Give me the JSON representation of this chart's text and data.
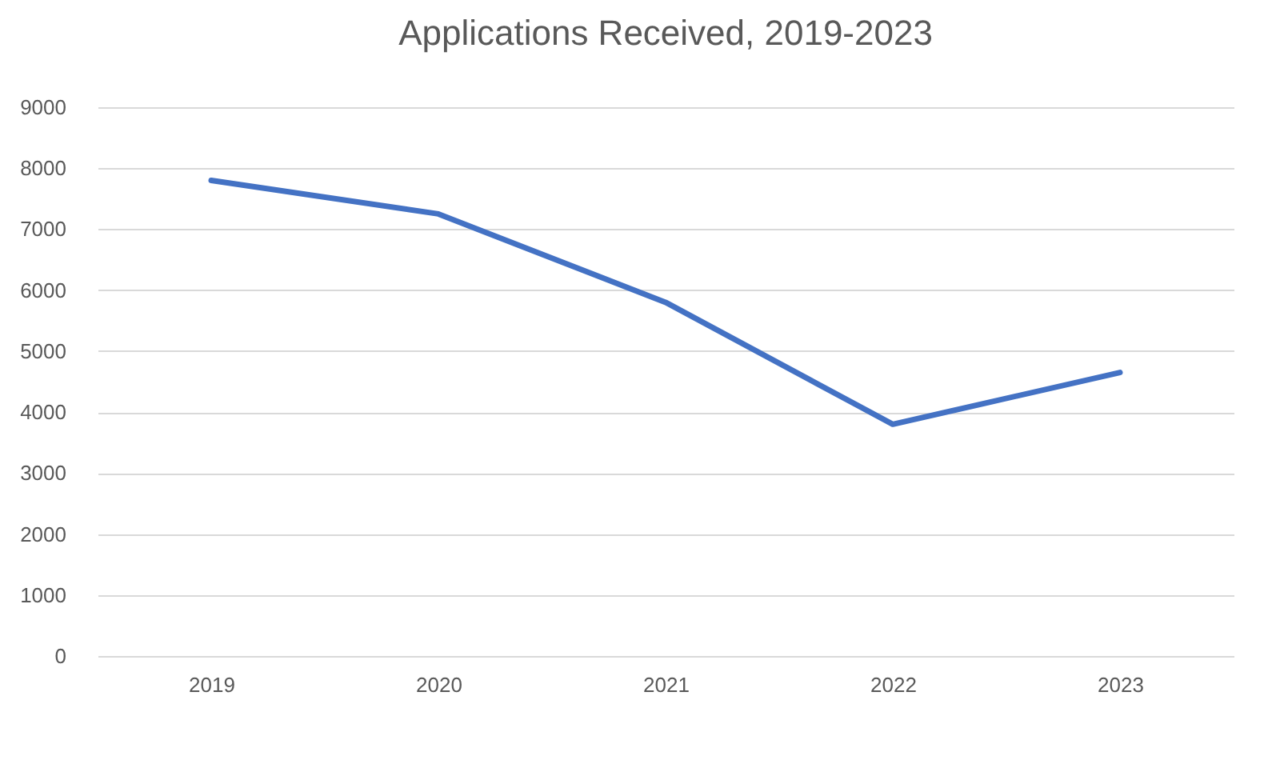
{
  "chart_data": {
    "type": "line",
    "title": "Applications Received, 2019-2023",
    "categories": [
      "2019",
      "2020",
      "2021",
      "2022",
      "2023"
    ],
    "series": [
      {
        "color": "#4472c4",
        "values": [
          7800,
          7250,
          5800,
          3800,
          4650
        ]
      }
    ],
    "ylim": [
      0,
      9000
    ],
    "yticks": [
      0,
      1000,
      2000,
      3000,
      4000,
      5000,
      6000,
      7000,
      8000,
      9000
    ],
    "grid": "y",
    "legend": false,
    "marker": "none",
    "line_style": "solid"
  }
}
